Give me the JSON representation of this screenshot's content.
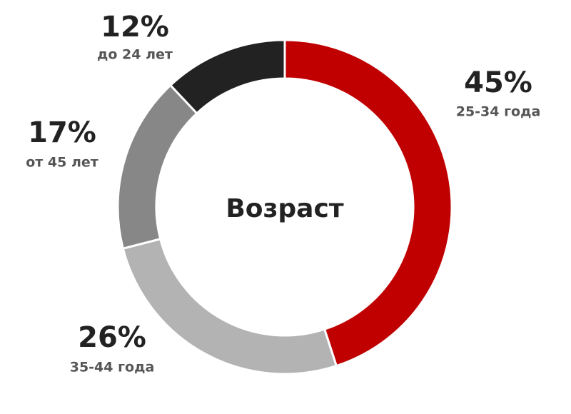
{
  "chart_data": {
    "type": "donut",
    "center_label": "Возраст",
    "categories": [
      "25-34 года",
      "35-44 года",
      "от 45 лет",
      "до 24 лет"
    ],
    "values": [
      45,
      26,
      17,
      12
    ],
    "value_labels": [
      "45%",
      "26%",
      "17%",
      "12%"
    ],
    "colors": [
      "#c00000",
      "#b3b3b3",
      "#878787",
      "#222222"
    ]
  }
}
